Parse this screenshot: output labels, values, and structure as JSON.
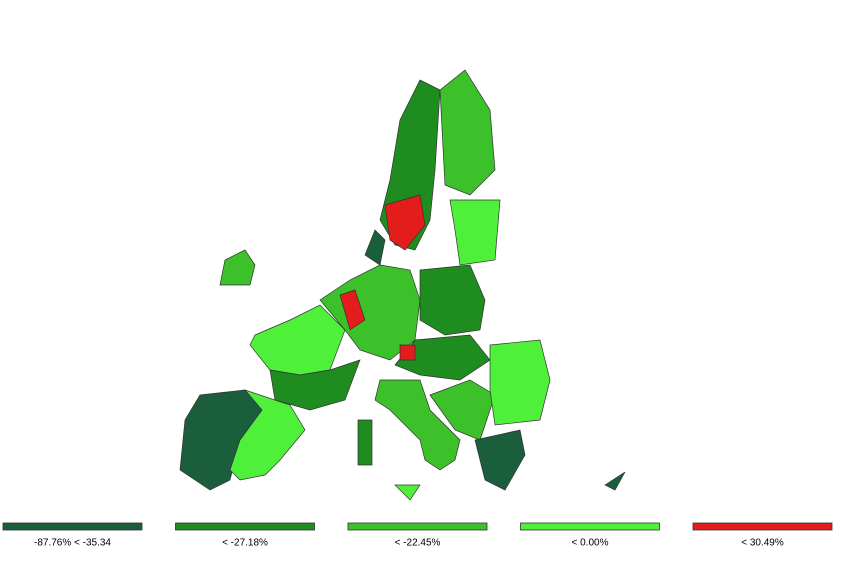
{
  "legend": {
    "items": [
      {
        "label": "-87.76% < -35.34",
        "color": "#1b5e3c"
      },
      {
        "label": "< -27.18%",
        "color": "#1f8c1f"
      },
      {
        "label": "< -22.45%",
        "color": "#3cc12a"
      },
      {
        "label": "< 0.00%",
        "color": "#4ef03a"
      },
      {
        "label": "< 30.49%",
        "color": "#e41c1c"
      }
    ]
  }
}
